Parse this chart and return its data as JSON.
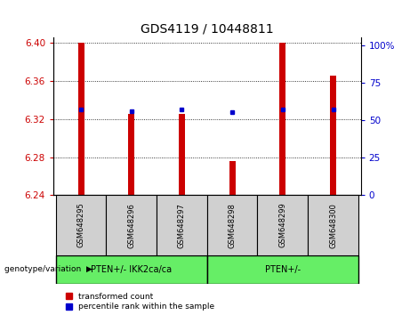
{
  "title": "GDS4119 / 10448811",
  "samples": [
    "GSM648295",
    "GSM648296",
    "GSM648297",
    "GSM648298",
    "GSM648299",
    "GSM648300"
  ],
  "red_values": [
    6.4,
    6.325,
    6.325,
    6.276,
    6.4,
    6.365
  ],
  "blue_values": [
    6.33,
    6.328,
    6.33,
    6.327,
    6.33,
    6.33
  ],
  "ylim_left": [
    6.24,
    6.405
  ],
  "ylim_right": [
    0,
    105
  ],
  "yticks_left": [
    6.24,
    6.28,
    6.32,
    6.36,
    6.4
  ],
  "yticks_right": [
    0,
    25,
    50,
    75,
    100
  ],
  "ytick_labels_right": [
    "0",
    "25",
    "50",
    "75",
    "100%"
  ],
  "bar_baseline": 6.24,
  "red_color": "#cc0000",
  "blue_color": "#0000cc",
  "group1_label": "PTEN+/- IKK2ca/ca",
  "group2_label": "PTEN+/-",
  "group_color": "#66ee66",
  "sample_box_color": "#d0d0d0",
  "xlabel_left": "genotype/variation",
  "legend_items": [
    {
      "label": "transformed count",
      "color": "#cc0000"
    },
    {
      "label": "percentile rank within the sample",
      "color": "#0000cc"
    }
  ],
  "grid_color": "black",
  "grid_linestyle": ":",
  "title_fontsize": 10,
  "tick_fontsize": 7.5,
  "bar_width": 0.12
}
